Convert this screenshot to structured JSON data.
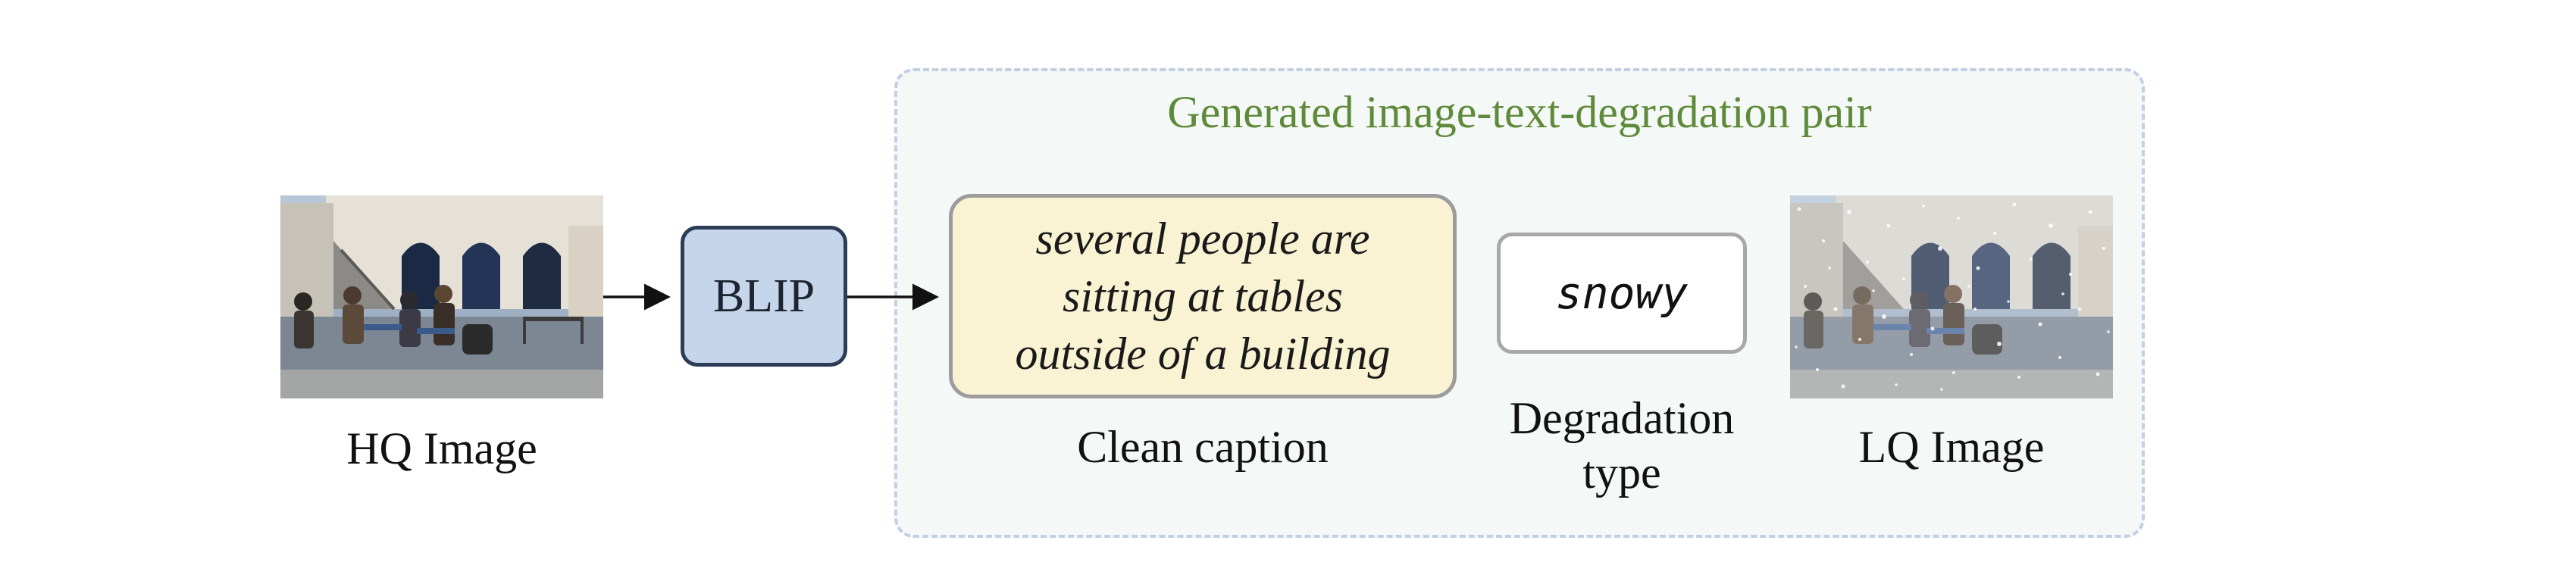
{
  "diagram": {
    "group_title": "Generated image-text-degradation pair",
    "hq_label": "HQ Image",
    "blip_label": "BLIP",
    "caption_lines": [
      "several people are",
      "sitting at tables",
      "outside of a building"
    ],
    "caption_label": "Clean caption",
    "degradation_value": "snowy",
    "degradation_label_lines": [
      "Degradation",
      "type"
    ],
    "lq_label": "LQ Image"
  },
  "colors": {
    "group_title": "#5f8a3a",
    "group_border": "#c2cfe4",
    "group_fill": "#f4f8f6",
    "blip_fill": "#c6d6ea",
    "blip_border": "#2d3d57",
    "caption_fill": "#faf3d3",
    "box_border": "#9c9c9c"
  }
}
